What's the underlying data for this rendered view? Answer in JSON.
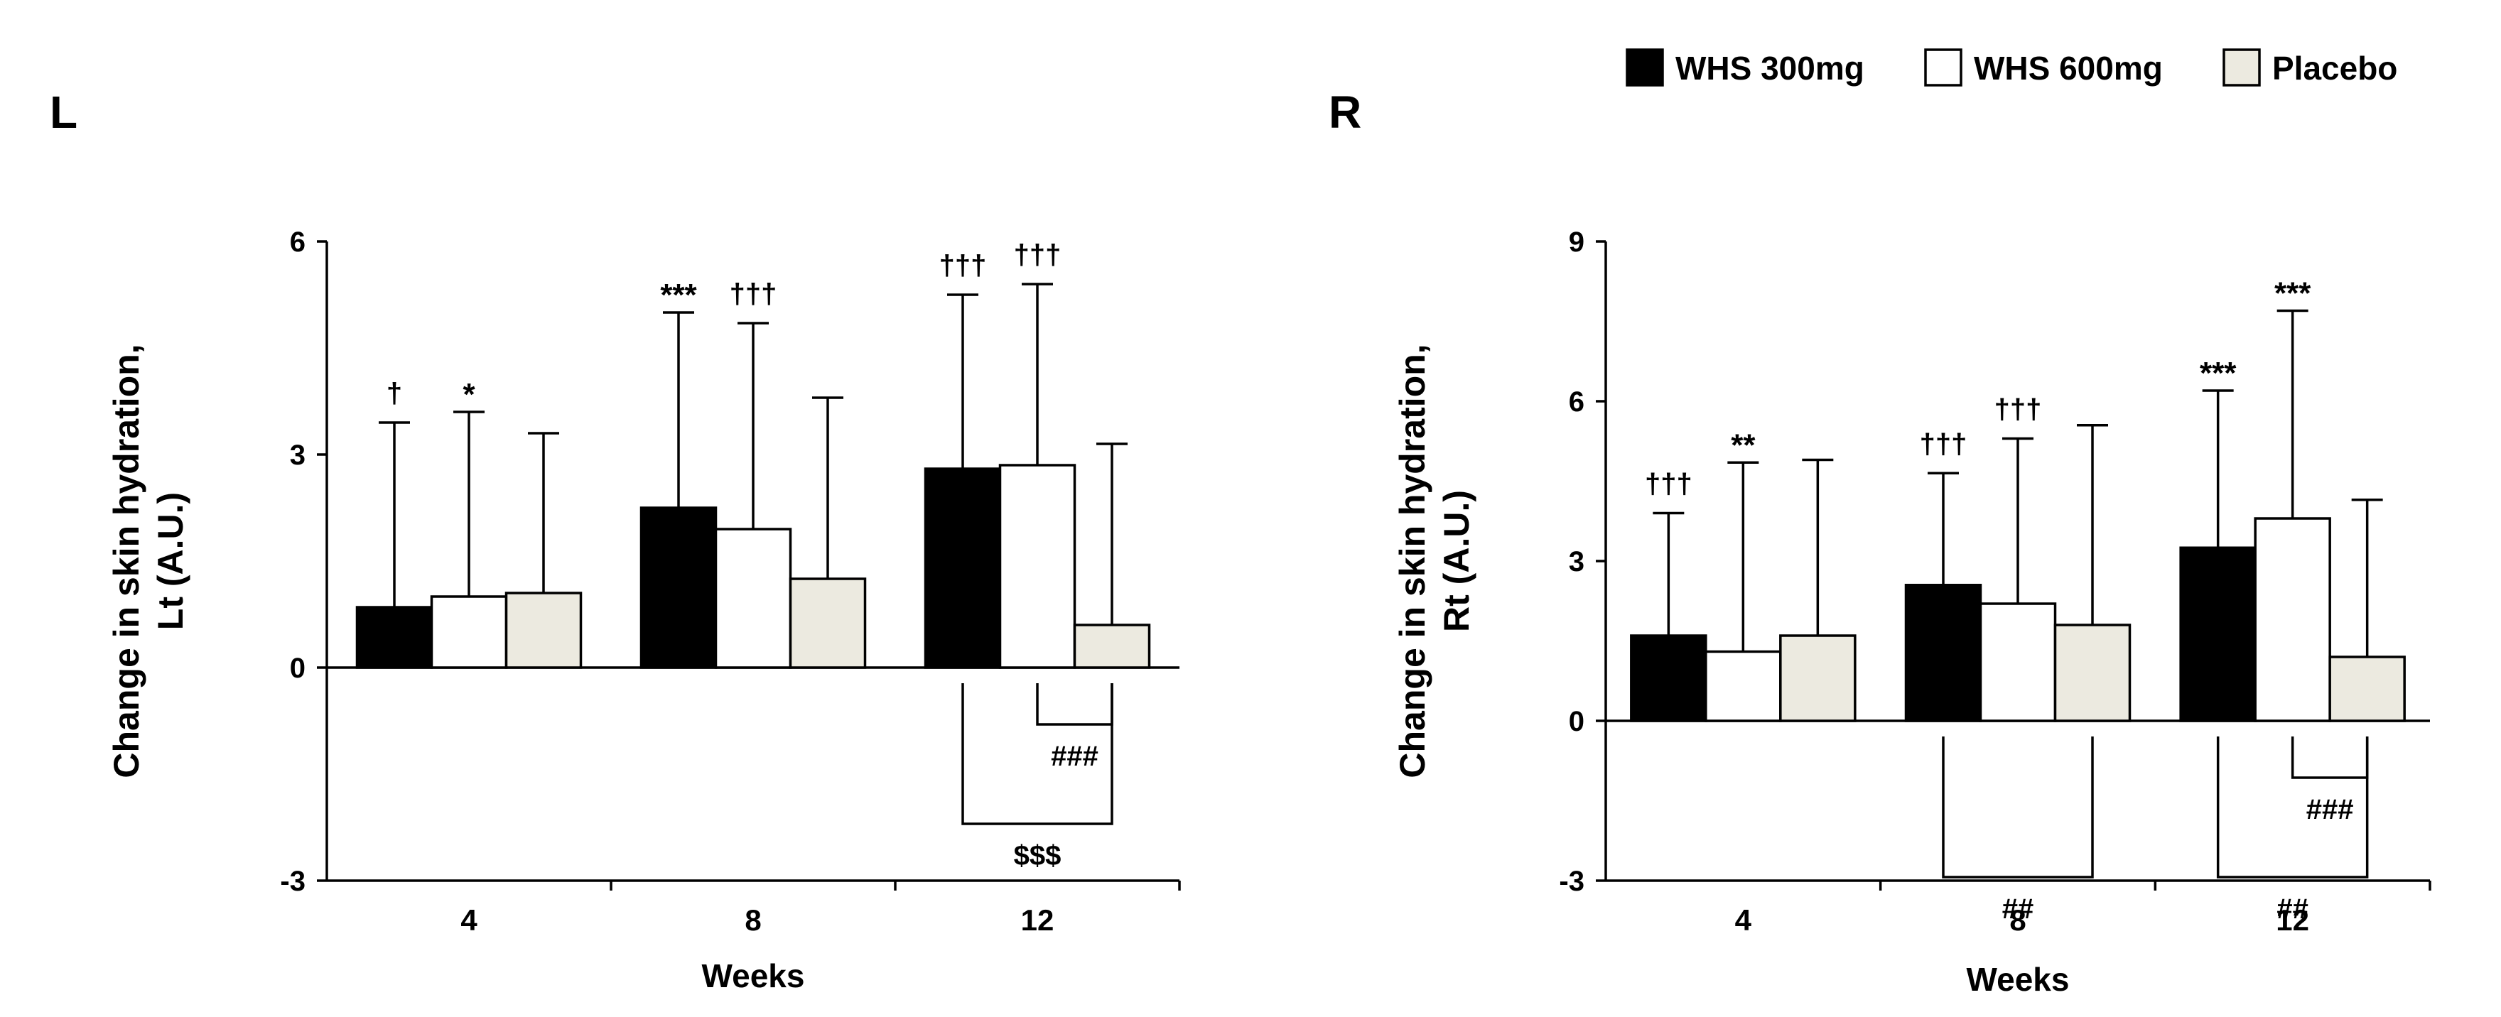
{
  "legend": {
    "position": "top-right",
    "items": [
      {
        "name": "WHS 300mg",
        "color": "#000000"
      },
      {
        "name": "WHS 600mg",
        "color": "#ffffff"
      },
      {
        "name": "Placebo",
        "color": "#eceae0"
      }
    ]
  },
  "chart_data": [
    {
      "type": "bar",
      "panel_label": "L",
      "title": "",
      "xlabel": "Weeks",
      "ylabel_lines": [
        "Change in skin hydration,",
        "Lt (A.U.)"
      ],
      "categories": [
        "4",
        "8",
        "12"
      ],
      "ylim": [
        -3,
        6
      ],
      "yticks": [
        -3,
        0,
        3,
        6
      ],
      "series": [
        {
          "name": "WHS 300mg",
          "values": [
            0.85,
            2.25,
            2.8
          ],
          "sd": [
            2.6,
            2.75,
            2.45
          ]
        },
        {
          "name": "WHS 600mg",
          "values": [
            1.0,
            1.95,
            2.85
          ],
          "sd": [
            2.6,
            2.9,
            2.55
          ]
        },
        {
          "name": "Placebo",
          "values": [
            1.05,
            1.25,
            0.6
          ],
          "sd": [
            2.25,
            2.55,
            2.55
          ]
        }
      ],
      "annotations": [
        {
          "category": 0,
          "series": 0,
          "text": "†"
        },
        {
          "category": 0,
          "series": 1,
          "text": "*"
        },
        {
          "category": 1,
          "series": 0,
          "text": "***"
        },
        {
          "category": 1,
          "series": 1,
          "text": "†††"
        },
        {
          "category": 2,
          "series": 0,
          "text": "†††"
        },
        {
          "category": 2,
          "series": 1,
          "text": "†††"
        }
      ],
      "comparisons": [
        {
          "category": 2,
          "from_series": 1,
          "to_series": 2,
          "text": "###",
          "level": 1
        },
        {
          "category": 2,
          "from_series": 0,
          "to_series": 2,
          "text": "$$$",
          "level": 2
        }
      ]
    },
    {
      "type": "bar",
      "panel_label": "R",
      "title": "",
      "xlabel": "Weeks",
      "ylabel_lines": [
        "Change in skin hydration,",
        "Rt (A.U.)"
      ],
      "categories": [
        "4",
        "8",
        "12"
      ],
      "ylim": [
        -3,
        9
      ],
      "yticks": [
        -3,
        0,
        3,
        6,
        9
      ],
      "series": [
        {
          "name": "WHS 300mg",
          "values": [
            1.6,
            2.55,
            3.25
          ],
          "sd": [
            2.3,
            2.1,
            2.95
          ]
        },
        {
          "name": "WHS 600mg",
          "values": [
            1.3,
            2.2,
            3.8
          ],
          "sd": [
            3.55,
            3.1,
            3.9
          ]
        },
        {
          "name": "Placebo",
          "values": [
            1.6,
            1.8,
            1.2
          ],
          "sd": [
            3.3,
            3.75,
            2.95
          ]
        }
      ],
      "annotations": [
        {
          "category": 0,
          "series": 0,
          "text": "†††"
        },
        {
          "category": 0,
          "series": 1,
          "text": "**"
        },
        {
          "category": 1,
          "series": 0,
          "text": "†††"
        },
        {
          "category": 1,
          "series": 1,
          "text": "†††"
        },
        {
          "category": 2,
          "series": 0,
          "text": "***"
        },
        {
          "category": 2,
          "series": 1,
          "text": "***"
        }
      ],
      "comparisons": [
        {
          "category": 1,
          "from_series": 0,
          "to_series": 2,
          "text": "##",
          "level": 2
        },
        {
          "category": 2,
          "from_series": 1,
          "to_series": 2,
          "text": "###",
          "level": 1
        },
        {
          "category": 2,
          "from_series": 0,
          "to_series": 2,
          "text": "##",
          "level": 2
        }
      ]
    }
  ]
}
